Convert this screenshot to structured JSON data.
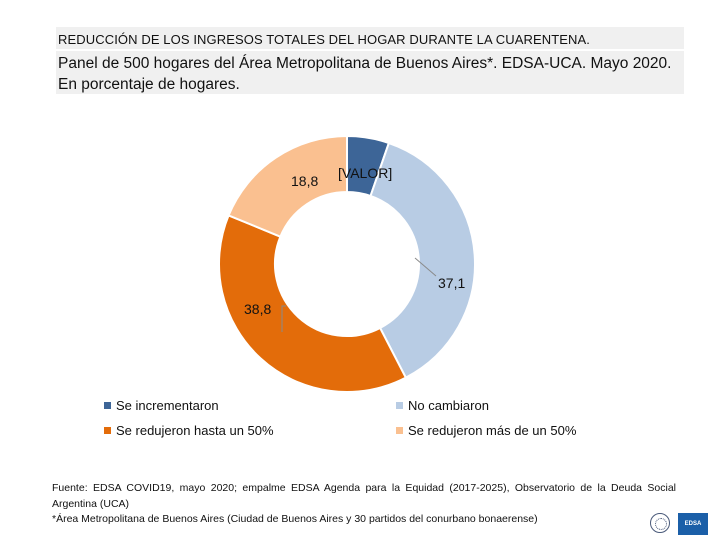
{
  "header": {
    "line1": "REDUCCIÓN DE LOS INGRESOS TOTALES DEL HOGAR DURANTE LA CUARENTENA.",
    "line2": "Panel de 500 hogares del Área Metropolitana de Buenos Aires*. EDSA-UCA. Mayo 2020. En porcentaje de hogares."
  },
  "chart_data": {
    "type": "pie",
    "variant": "donut",
    "title": "REDUCCIÓN DE LOS INGRESOS TOTALES DEL HOGAR DURANTE LA CUARENTENA.",
    "categories": [
      "Se incrementaron",
      "No cambiaron",
      "Se redujeron hasta un 50%",
      "Se redujeron más de un 50%"
    ],
    "values": [
      5.3,
      37.1,
      38.8,
      18.8
    ],
    "data_labels": [
      "[VALOR]",
      "37,1",
      "38,8",
      "18,8"
    ],
    "colors": [
      "#3d6597",
      "#b8cce4",
      "#e36c0a",
      "#fac090"
    ],
    "legend_position": "bottom"
  },
  "legend": {
    "items": [
      {
        "label": "Se incrementaron",
        "color": "#3d6597"
      },
      {
        "label": "No cambiaron",
        "color": "#b8cce4"
      },
      {
        "label": "Se redujeron hasta un 50%",
        "color": "#e36c0a"
      },
      {
        "label": "Se redujeron más de un 50%",
        "color": "#fac090"
      }
    ]
  },
  "footer": {
    "source": "Fuente: EDSA COVID19, mayo 2020; empalme EDSA Agenda para la Equidad (2017-2025), Observatorio de la Deuda Social Argentina (UCA)",
    "note": "*Área Metropolitana de Buenos Aires (Ciudad de Buenos Aires y 30 partidos del conurbano bonaerense)"
  },
  "logos": {
    "badge_text": "EDSA"
  }
}
